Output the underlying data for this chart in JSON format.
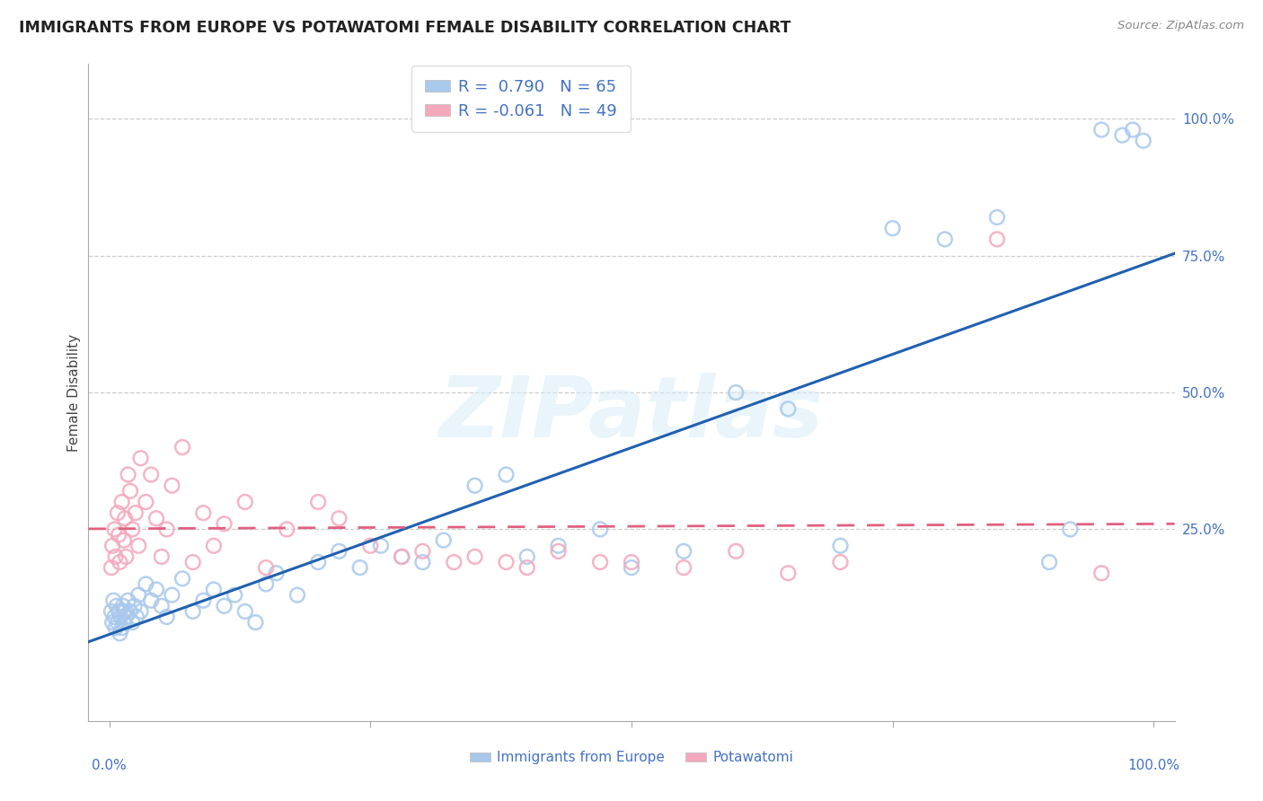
{
  "title": "IMMIGRANTS FROM EUROPE VS POTAWATOMI FEMALE DISABILITY CORRELATION CHART",
  "source": "Source: ZipAtlas.com",
  "ylabel": "Female Disability",
  "blue_label": "Immigrants from Europe",
  "pink_label": "Potawatomi",
  "blue_R": 0.79,
  "blue_N": 65,
  "pink_R": -0.061,
  "pink_N": 49,
  "blue_color": "#A8C8EC",
  "pink_color": "#F4A8BC",
  "blue_line_color": "#2060B0",
  "pink_line_color": "#E06080",
  "text_color": "#4472C4",
  "title_color": "#222222",
  "source_color": "#888888",
  "watermark_color": "#D8EEF8",
  "watermark_text": "ZIPatlas",
  "grid_color": "#CCCCCC",
  "blue_x": [
    0.2,
    0.3,
    0.4,
    0.5,
    0.6,
    0.7,
    0.8,
    0.9,
    1.0,
    1.1,
    1.2,
    1.3,
    1.4,
    1.5,
    1.6,
    1.8,
    2.0,
    2.2,
    2.4,
    2.6,
    2.8,
    3.0,
    3.5,
    4.0,
    4.5,
    5.0,
    5.5,
    6.0,
    7.0,
    8.0,
    9.0,
    10.0,
    11.0,
    12.0,
    13.0,
    14.0,
    15.0,
    16.0,
    18.0,
    20.0,
    22.0,
    24.0,
    26.0,
    28.0,
    30.0,
    32.0,
    35.0,
    38.0,
    40.0,
    43.0,
    47.0,
    50.0,
    55.0,
    60.0,
    65.0,
    70.0,
    75.0,
    80.0,
    85.0,
    90.0,
    92.0,
    95.0,
    97.0,
    98.0,
    99.0
  ],
  "blue_y": [
    10,
    8,
    12,
    9,
    7,
    11,
    8,
    10,
    6,
    9,
    7,
    11,
    8,
    10,
    9,
    12,
    10,
    8,
    11,
    9,
    13,
    10,
    15,
    12,
    14,
    11,
    9,
    13,
    16,
    10,
    12,
    14,
    11,
    13,
    10,
    8,
    15,
    17,
    13,
    19,
    21,
    18,
    22,
    20,
    19,
    23,
    33,
    35,
    20,
    22,
    25,
    18,
    21,
    50,
    47,
    22,
    80,
    78,
    82,
    19,
    25,
    98,
    97,
    98,
    96
  ],
  "pink_x": [
    0.2,
    0.3,
    0.5,
    0.6,
    0.8,
    0.9,
    1.0,
    1.2,
    1.4,
    1.5,
    1.6,
    1.8,
    2.0,
    2.2,
    2.5,
    2.8,
    3.0,
    3.5,
    4.0,
    4.5,
    5.0,
    5.5,
    6.0,
    7.0,
    8.0,
    9.0,
    10.0,
    11.0,
    13.0,
    15.0,
    17.0,
    20.0,
    22.0,
    25.0,
    28.0,
    30.0,
    33.0,
    35.0,
    38.0,
    40.0,
    43.0,
    47.0,
    50.0,
    55.0,
    60.0,
    65.0,
    70.0,
    85.0,
    95.0
  ],
  "pink_y": [
    18,
    22,
    25,
    20,
    28,
    24,
    19,
    30,
    23,
    27,
    20,
    35,
    32,
    25,
    28,
    22,
    38,
    30,
    35,
    27,
    20,
    25,
    33,
    40,
    19,
    28,
    22,
    26,
    30,
    18,
    25,
    30,
    27,
    22,
    20,
    21,
    19,
    20,
    19,
    18,
    21,
    19,
    19,
    18,
    21,
    17,
    19,
    78,
    17
  ]
}
